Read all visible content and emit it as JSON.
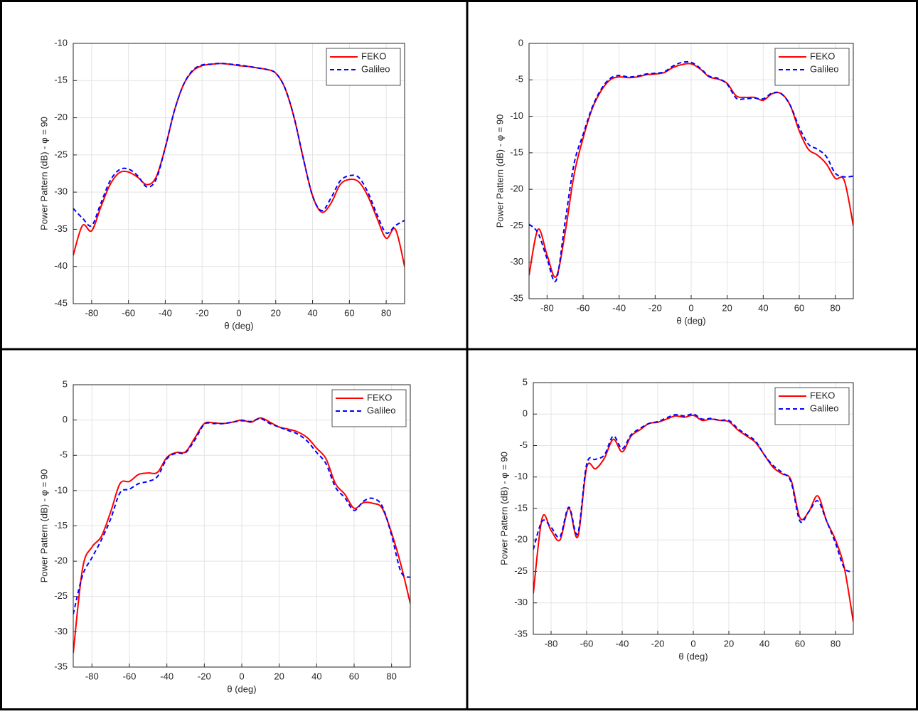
{
  "chart_data": [
    {
      "type": "line",
      "xlabel": "θ (deg)",
      "ylabel": "Power Pattern (dB) - φ = 90",
      "grid": true,
      "legend": "northeast",
      "x": [
        -90,
        -85,
        -80,
        -75,
        -70,
        -65,
        -60,
        -55,
        -50,
        -45,
        -40,
        -35,
        -30,
        -25,
        -20,
        -15,
        -10,
        -5,
        0,
        5,
        10,
        15,
        20,
        25,
        30,
        35,
        40,
        45,
        50,
        55,
        60,
        65,
        70,
        75,
        80,
        85,
        90
      ],
      "xlim": [
        -90,
        90
      ],
      "xticks": [
        -80,
        -60,
        -40,
        -20,
        0,
        20,
        40,
        60,
        80
      ],
      "ylim": [
        -45,
        -10
      ],
      "yticks": [
        -45,
        -40,
        -35,
        -30,
        -25,
        -20,
        -15,
        -10
      ],
      "series": [
        {
          "name": "FEKO",
          "color": "#ff0000",
          "line_style": "solid",
          "values": [
            -38.5,
            -34.5,
            -35.2,
            -32,
            -29,
            -27.4,
            -27.3,
            -28,
            -29,
            -28,
            -24,
            -19,
            -15.5,
            -13.7,
            -13,
            -12.8,
            -12.7,
            -12.8,
            -13,
            -13.1,
            -13.3,
            -13.5,
            -14,
            -16,
            -20,
            -25.5,
            -30.5,
            -32.7,
            -31.5,
            -29,
            -28.3,
            -28.6,
            -30.5,
            -33.5,
            -36.2,
            -35,
            -40
          ]
        },
        {
          "name": "Galileo",
          "color": "#0000ff",
          "line_style": "dashed",
          "values": [
            -32.2,
            -33.5,
            -34.5,
            -31.5,
            -28.5,
            -27,
            -26.9,
            -27.8,
            -29.3,
            -28.3,
            -24,
            -19,
            -15.5,
            -13.6,
            -12.9,
            -12.8,
            -12.7,
            -12.8,
            -12.9,
            -13.1,
            -13.3,
            -13.5,
            -14,
            -16,
            -20,
            -25.5,
            -30.5,
            -32.5,
            -30.8,
            -28.5,
            -27.8,
            -28,
            -30,
            -33,
            -35.5,
            -34.5,
            -33.8
          ]
        }
      ]
    },
    {
      "type": "line",
      "xlabel": "θ (deg)",
      "ylabel": "Power Pattern (dB) - φ = 90",
      "grid": true,
      "legend": "northeast",
      "x": [
        -90,
        -85,
        -80,
        -75,
        -70,
        -65,
        -60,
        -55,
        -50,
        -45,
        -40,
        -35,
        -30,
        -25,
        -20,
        -15,
        -10,
        -5,
        0,
        5,
        10,
        15,
        20,
        25,
        30,
        35,
        40,
        45,
        50,
        55,
        60,
        65,
        70,
        75,
        80,
        85,
        90
      ],
      "xlim": [
        -90,
        90
      ],
      "xticks": [
        -80,
        -60,
        -40,
        -20,
        0,
        20,
        40,
        60,
        80
      ],
      "ylim": [
        -35,
        0
      ],
      "yticks": [
        -35,
        -30,
        -25,
        -20,
        -15,
        -10,
        -5,
        0
      ],
      "series": [
        {
          "name": "FEKO",
          "color": "#ff0000",
          "line_style": "solid",
          "values": [
            -31.8,
            -25.5,
            -29,
            -32,
            -26,
            -18,
            -13,
            -9,
            -6.5,
            -5,
            -4.6,
            -4.7,
            -4.6,
            -4.3,
            -4.2,
            -4,
            -3.3,
            -2.9,
            -2.8,
            -3.5,
            -4.6,
            -4.9,
            -5.5,
            -7.2,
            -7.4,
            -7.4,
            -7.8,
            -6.9,
            -6.9,
            -8.5,
            -12,
            -14.5,
            -15.3,
            -16.5,
            -18.5,
            -18.8,
            -25
          ]
        },
        {
          "name": "Galileo",
          "color": "#0000ff",
          "line_style": "dashed",
          "values": [
            -24.8,
            -26,
            -29.5,
            -32.5,
            -24.5,
            -16.5,
            -12.5,
            -8.8,
            -6.3,
            -4.8,
            -4.4,
            -4.6,
            -4.5,
            -4.2,
            -4.1,
            -3.9,
            -3.1,
            -2.6,
            -2.6,
            -3.4,
            -4.5,
            -4.8,
            -5.6,
            -7.5,
            -7.6,
            -7.5,
            -7.6,
            -6.8,
            -6.9,
            -8.5,
            -11.5,
            -13.8,
            -14.5,
            -15.5,
            -17.8,
            -18.3,
            -18.2
          ]
        }
      ]
    },
    {
      "type": "line",
      "xlabel": "θ (deg)",
      "ylabel": "Power Pattern (dB) - φ = 90",
      "grid": true,
      "legend": "northeast",
      "x": [
        -90,
        -85,
        -80,
        -75,
        -70,
        -65,
        -60,
        -55,
        -50,
        -45,
        -40,
        -35,
        -30,
        -25,
        -20,
        -15,
        -10,
        -5,
        0,
        5,
        10,
        15,
        20,
        25,
        30,
        35,
        40,
        45,
        50,
        55,
        60,
        65,
        70,
        75,
        80,
        85,
        90
      ],
      "xlim": [
        -90,
        90
      ],
      "xticks": [
        -80,
        -60,
        -40,
        -20,
        0,
        20,
        40,
        60,
        80
      ],
      "ylim": [
        -35,
        5
      ],
      "yticks": [
        -35,
        -30,
        -25,
        -20,
        -15,
        -10,
        -5,
        0,
        5
      ],
      "series": [
        {
          "name": "FEKO",
          "color": "#ff0000",
          "line_style": "solid",
          "values": [
            -33,
            -21,
            -18,
            -16.5,
            -13,
            -9,
            -8.7,
            -7.7,
            -7.5,
            -7.4,
            -5.3,
            -4.6,
            -4.5,
            -2.5,
            -0.5,
            -0.4,
            -0.5,
            -0.3,
            0,
            -0.3,
            0.3,
            -0.3,
            -1,
            -1.3,
            -1.7,
            -2.5,
            -4,
            -5.5,
            -9,
            -10.5,
            -12.5,
            -11.7,
            -11.8,
            -12.5,
            -16,
            -20.5,
            -26
          ]
        },
        {
          "name": "Galileo",
          "color": "#0000ff",
          "line_style": "dashed",
          "values": [
            -27.5,
            -22,
            -19.5,
            -17,
            -14,
            -10.3,
            -9.8,
            -9,
            -8.7,
            -8,
            -5.5,
            -4.7,
            -4.6,
            -2.8,
            -0.6,
            -0.5,
            -0.5,
            -0.3,
            -0.1,
            -0.2,
            0.2,
            -0.5,
            -1,
            -1.5,
            -2,
            -3,
            -4.6,
            -6.2,
            -9.5,
            -11,
            -12.8,
            -11.5,
            -11.1,
            -12.2,
            -16.3,
            -21.5,
            -22.3
          ]
        }
      ]
    },
    {
      "type": "line",
      "xlabel": "θ (deg)",
      "ylabel": "Power Pattern (dB) - φ = 90",
      "grid": true,
      "legend": "northeast",
      "x": [
        -90,
        -85,
        -80,
        -75,
        -70,
        -65,
        -60,
        -55,
        -50,
        -45,
        -40,
        -35,
        -30,
        -25,
        -20,
        -15,
        -10,
        -5,
        0,
        5,
        10,
        15,
        20,
        25,
        30,
        35,
        40,
        45,
        50,
        55,
        60,
        65,
        70,
        75,
        80,
        85,
        90
      ],
      "xlim": [
        -90,
        90
      ],
      "xticks": [
        -80,
        -60,
        -40,
        -20,
        0,
        20,
        40,
        60,
        80
      ],
      "ylim": [
        -35,
        5
      ],
      "yticks": [
        -35,
        -30,
        -25,
        -20,
        -15,
        -10,
        -5,
        0,
        5
      ],
      "series": [
        {
          "name": "FEKO",
          "color": "#ff0000",
          "line_style": "solid",
          "values": [
            -28.5,
            -16.5,
            -18.5,
            -20,
            -15,
            -19.5,
            -8.5,
            -8.7,
            -7,
            -4,
            -6,
            -3.5,
            -2.5,
            -1.5,
            -1.3,
            -0.8,
            -0.3,
            -0.5,
            -0.2,
            -1,
            -0.8,
            -1,
            -1.2,
            -2.5,
            -3.5,
            -4.5,
            -6.5,
            -8.5,
            -9.5,
            -10.5,
            -16.5,
            -15.5,
            -13,
            -17,
            -20,
            -24.5,
            -33
          ]
        },
        {
          "name": "Galileo",
          "color": "#0000ff",
          "line_style": "dashed",
          "values": [
            -21.5,
            -17,
            -18,
            -19.5,
            -14.8,
            -19,
            -8,
            -7.2,
            -6.5,
            -3.5,
            -5.5,
            -3.3,
            -2.3,
            -1.5,
            -1.2,
            -0.6,
            -0.1,
            -0.3,
            0,
            -0.8,
            -0.7,
            -1,
            -1,
            -2.3,
            -3.3,
            -4.3,
            -6.5,
            -8.2,
            -9.3,
            -10.8,
            -17,
            -15.5,
            -13.8,
            -17,
            -20.5,
            -24.5,
            -25
          ]
        }
      ]
    }
  ]
}
